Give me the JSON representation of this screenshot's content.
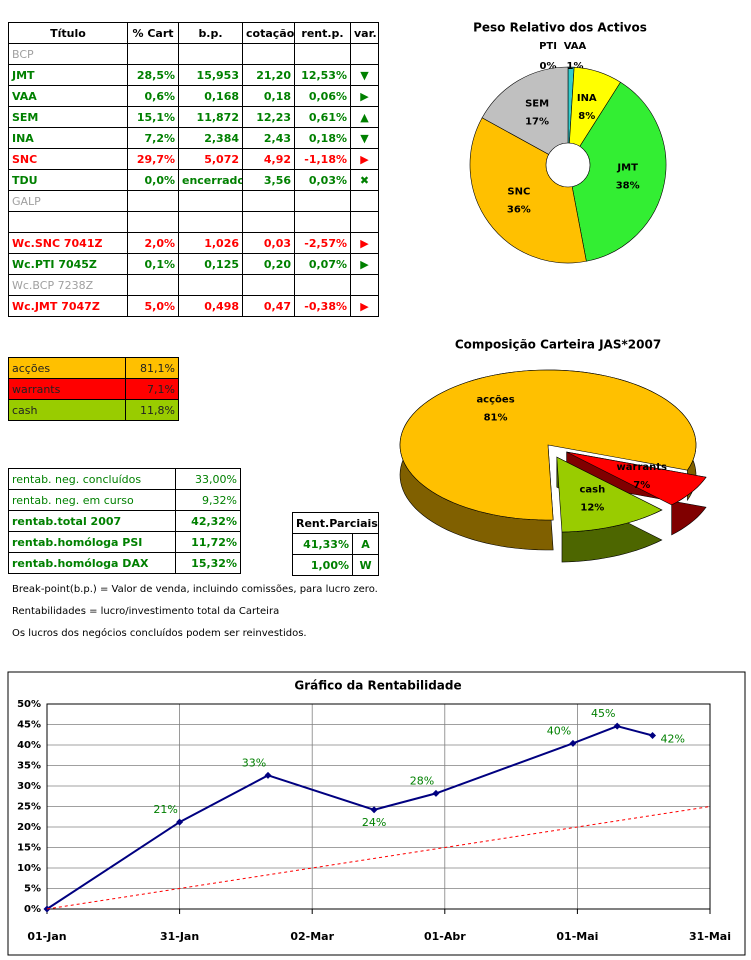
{
  "portfolio_table": {
    "header": [
      "Título",
      "% Cart",
      "b.p.",
      "cotação",
      "rent.p.",
      "var."
    ],
    "rows": [
      {
        "cells": [
          "BCP"
        ],
        "color": "#a0a0a0"
      },
      {
        "cells": [
          "JMT",
          "28,5%",
          "15,953",
          "21,20",
          "12,53%",
          "▼"
        ],
        "color": "#008000"
      },
      {
        "cells": [
          "VAA",
          "0,6%",
          "0,168",
          "0,18",
          "0,06%",
          "▶"
        ],
        "color": "#008000"
      },
      {
        "cells": [
          "SEM",
          "15,1%",
          "11,872",
          "12,23",
          "0,61%",
          "▲"
        ],
        "color": "#008000"
      },
      {
        "cells": [
          "INA",
          "7,2%",
          "2,384",
          "2,43",
          "0,18%",
          "▼"
        ],
        "color": "#008000"
      },
      {
        "cells": [
          "SNC",
          "29,7%",
          "5,072",
          "4,92",
          "-1,18%",
          "▶"
        ],
        "color": "#ff0000"
      },
      {
        "cells": [
          "TDU",
          "0,0%",
          "encerrado",
          "3,56",
          "0,03%",
          "✖"
        ],
        "color": "#008000"
      },
      {
        "cells": [
          "GALP"
        ],
        "color": "#a0a0a0"
      },
      {
        "cells": []
      },
      {
        "cells": [
          "Wc.SNC 7041Z",
          "2,0%",
          "1,026",
          "0,03",
          "-2,57%",
          "▶"
        ],
        "color": "#ff0000"
      },
      {
        "cells": [
          "Wc.PTI 7045Z",
          "0,1%",
          "0,125",
          "0,20",
          "0,07%",
          "▶"
        ],
        "color": "#008000"
      },
      {
        "cells": [
          "Wc.BCP 7238Z"
        ],
        "color": "#a0a0a0"
      },
      {
        "cells": [
          "Wc.JMT 7047Z",
          "5,0%",
          "0,498",
          "0,47",
          "-0,38%",
          "▶"
        ],
        "color": "#ff0000"
      }
    ]
  },
  "allocation_table": {
    "rows": [
      {
        "cells": [
          "acções",
          "81,1%"
        ],
        "color": "#ffc000"
      },
      {
        "cells": [
          "warrants",
          "7,1%"
        ],
        "color": "#ff0000"
      },
      {
        "cells": [
          "cash",
          "11,8%"
        ],
        "color": "#99cc00"
      }
    ]
  },
  "returns_table": {
    "rows": [
      {
        "cells": [
          "rentab. neg. concluídos",
          "33,00%"
        ],
        "bold": false
      },
      {
        "cells": [
          "rentab. neg. em curso",
          "9,32%"
        ],
        "bold": false
      },
      {
        "cells": [
          "rentab.total 2007",
          "42,32%"
        ],
        "bold": true
      },
      {
        "cells": [
          "rentab.homóloga PSI",
          "11,72%"
        ],
        "bold": true
      },
      {
        "cells": [
          "rentab.homóloga DAX",
          "15,32%"
        ],
        "bold": true
      }
    ]
  },
  "partials_table": {
    "header": "Rent.Parciais",
    "rows": [
      [
        "41,33%",
        "A"
      ],
      [
        "1,00%",
        "W"
      ]
    ]
  },
  "notes": [
    "Break-point(b.p.) = Valor de venda, incluindo comissões, para lucro zero.",
    "Rentabilidades = lucro/investimento total da Carteira",
    "Os lucros dos negócios concluídos podem ser reinvestidos."
  ],
  "chart_data": [
    {
      "type": "pie",
      "title": "Peso Relativo dos Activos",
      "categories": [
        "PTI",
        "VAA",
        "INA",
        "JMT",
        "SNC",
        "SEM"
      ],
      "values": [
        0,
        1,
        8,
        38,
        36,
        17
      ],
      "value_labels": [
        "0%",
        "1%",
        "8%",
        "38%",
        "36%",
        "17%"
      ],
      "colors": [
        null,
        "#33cccc",
        "#ffff00",
        "#33ee33",
        "#ffc000",
        "#c0c0c0"
      ]
    },
    {
      "type": "pie",
      "title": "Composição Carteira JAS*2007",
      "three_d": true,
      "categories": [
        "acções",
        "warrants",
        "cash"
      ],
      "values": [
        81,
        7,
        12
      ],
      "value_labels": [
        "81%",
        "7%",
        "12%"
      ],
      "colors": [
        "#ffc000",
        "#ff0000",
        "#99cc00"
      ],
      "exploded": [
        false,
        true,
        true
      ]
    },
    {
      "type": "line",
      "title": "Gráfico da Rentabilidade",
      "xlim": [
        0,
        150
      ],
      "xticks": [
        {
          "value": 0,
          "label": "01-Jan"
        },
        {
          "value": 30,
          "label": "31-Jan"
        },
        {
          "value": 60,
          "label": "02-Mar"
        },
        {
          "value": 90,
          "label": "01-Abr"
        },
        {
          "value": 120,
          "label": "01-Mai"
        },
        {
          "value": 150,
          "label": "31-Mai"
        }
      ],
      "ylim": [
        0,
        50
      ],
      "yticks": [
        {
          "value": 0,
          "label": "0%"
        },
        {
          "value": 5,
          "label": "5%"
        },
        {
          "value": 10,
          "label": "10%"
        },
        {
          "value": 15,
          "label": "15%"
        },
        {
          "value": 20,
          "label": "20%"
        },
        {
          "value": 25,
          "label": "25%"
        },
        {
          "value": 30,
          "label": "30%"
        },
        {
          "value": 35,
          "label": "35%"
        },
        {
          "value": 40,
          "label": "40%"
        },
        {
          "value": 45,
          "label": "45%"
        },
        {
          "value": 50,
          "label": "50%"
        }
      ],
      "grid": true,
      "series": [
        {
          "color": "#000080",
          "x": [
            0,
            30,
            50,
            74,
            88,
            119,
            129,
            137
          ],
          "values": [
            0,
            21.2,
            32.6,
            24.2,
            28.2,
            40.4,
            44.6,
            42.32
          ],
          "value_labels": [
            null,
            "21%",
            "33%",
            "24%",
            "28%",
            "40%",
            "45%",
            "42%"
          ]
        },
        {
          "color": "#ff0000",
          "dashed": true,
          "x": [
            0,
            150
          ],
          "values": [
            0,
            25
          ]
        }
      ]
    }
  ]
}
